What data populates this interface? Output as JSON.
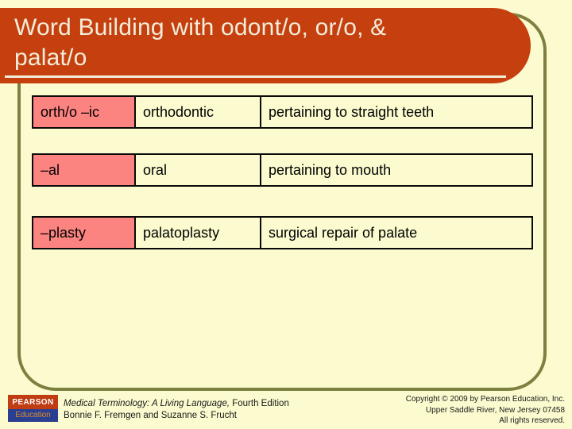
{
  "slide": {
    "title_line1": "Word Building with odont/o, or/o, &",
    "title_line2": "palat/o"
  },
  "table": {
    "rows": [
      {
        "word_part": "orth/o –ic",
        "term": "orthodontic",
        "definition": "pertaining to straight teeth"
      },
      {
        "word_part": "–al",
        "term": "oral",
        "definition": "pertaining to mouth"
      },
      {
        "word_part": "–plasty",
        "term": "palatoplasty",
        "definition": "surgical repair of palate"
      }
    ]
  },
  "footer": {
    "logo": {
      "top": "PEARSON",
      "bottom": "Education"
    },
    "book_title_italic": "Medical Terminology: A Living Language,",
    "book_title_rest": " Fourth Edition",
    "authors": "Bonnie F. Fremgen and Suzanne S. Frucht",
    "copyright_line1": "Copyright © 2009 by Pearson Education, Inc.",
    "copyright_line2": "Upper Saddle River, New Jersey 07458",
    "copyright_line3": "All rights reserved."
  },
  "colors": {
    "background": "#FBFBCF",
    "title_bar": "#C5400E",
    "title_text": "#F3EDDA",
    "frame_border": "#7E8040",
    "word_part_cell": "#FB8380",
    "cell_border": "#0A0A0A",
    "logo_red": "#C03C12",
    "logo_blue": "#2B3F90",
    "logo_education_text": "#D98E2B"
  }
}
